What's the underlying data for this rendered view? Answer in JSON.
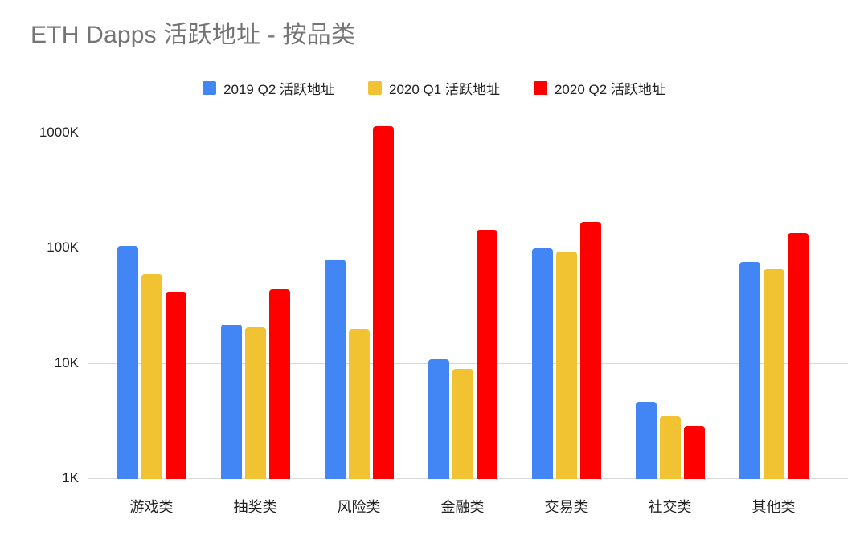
{
  "title": "ETH Dapps 活跃地址 - 按品类",
  "colors": {
    "series_blue": "#4285F4",
    "series_yellow": "#F1C232",
    "series_red": "#FF0000",
    "gridline": "#D9D9D9",
    "title_text": "#757575",
    "axis_text": "#212121",
    "background": "#FFFFFF"
  },
  "chart_data": {
    "type": "bar",
    "title": "ETH Dapps 活跃地址 - 按品类",
    "categories": [
      "游戏类",
      "抽奖类",
      "风险类",
      "金融类",
      "交易类",
      "社交类",
      "其他类"
    ],
    "series": [
      {
        "name": "2019 Q2 活跃地址",
        "color": "#4285F4",
        "values": [
          105000,
          22000,
          80000,
          11000,
          100000,
          4700,
          77000
        ]
      },
      {
        "name": "2020 Q1 活跃地址",
        "color": "#F1C232",
        "values": [
          60000,
          21000,
          20000,
          9000,
          95000,
          3500,
          66000
        ]
      },
      {
        "name": "2020 Q2 活跃地址",
        "color": "#FF0000",
        "values": [
          42000,
          44000,
          1150000,
          145000,
          170000,
          2900,
          136000
        ]
      }
    ],
    "xlabel": "",
    "ylabel": "",
    "y_axis": {
      "scale": "log",
      "min": 1000,
      "max": 1200000,
      "ticks": [
        {
          "label": "1K",
          "value": 1000
        },
        {
          "label": "10K",
          "value": 10000
        },
        {
          "label": "100K",
          "value": 100000
        },
        {
          "label": "1000K",
          "value": 1000000
        }
      ]
    },
    "legend_position": "top",
    "grid": true
  }
}
